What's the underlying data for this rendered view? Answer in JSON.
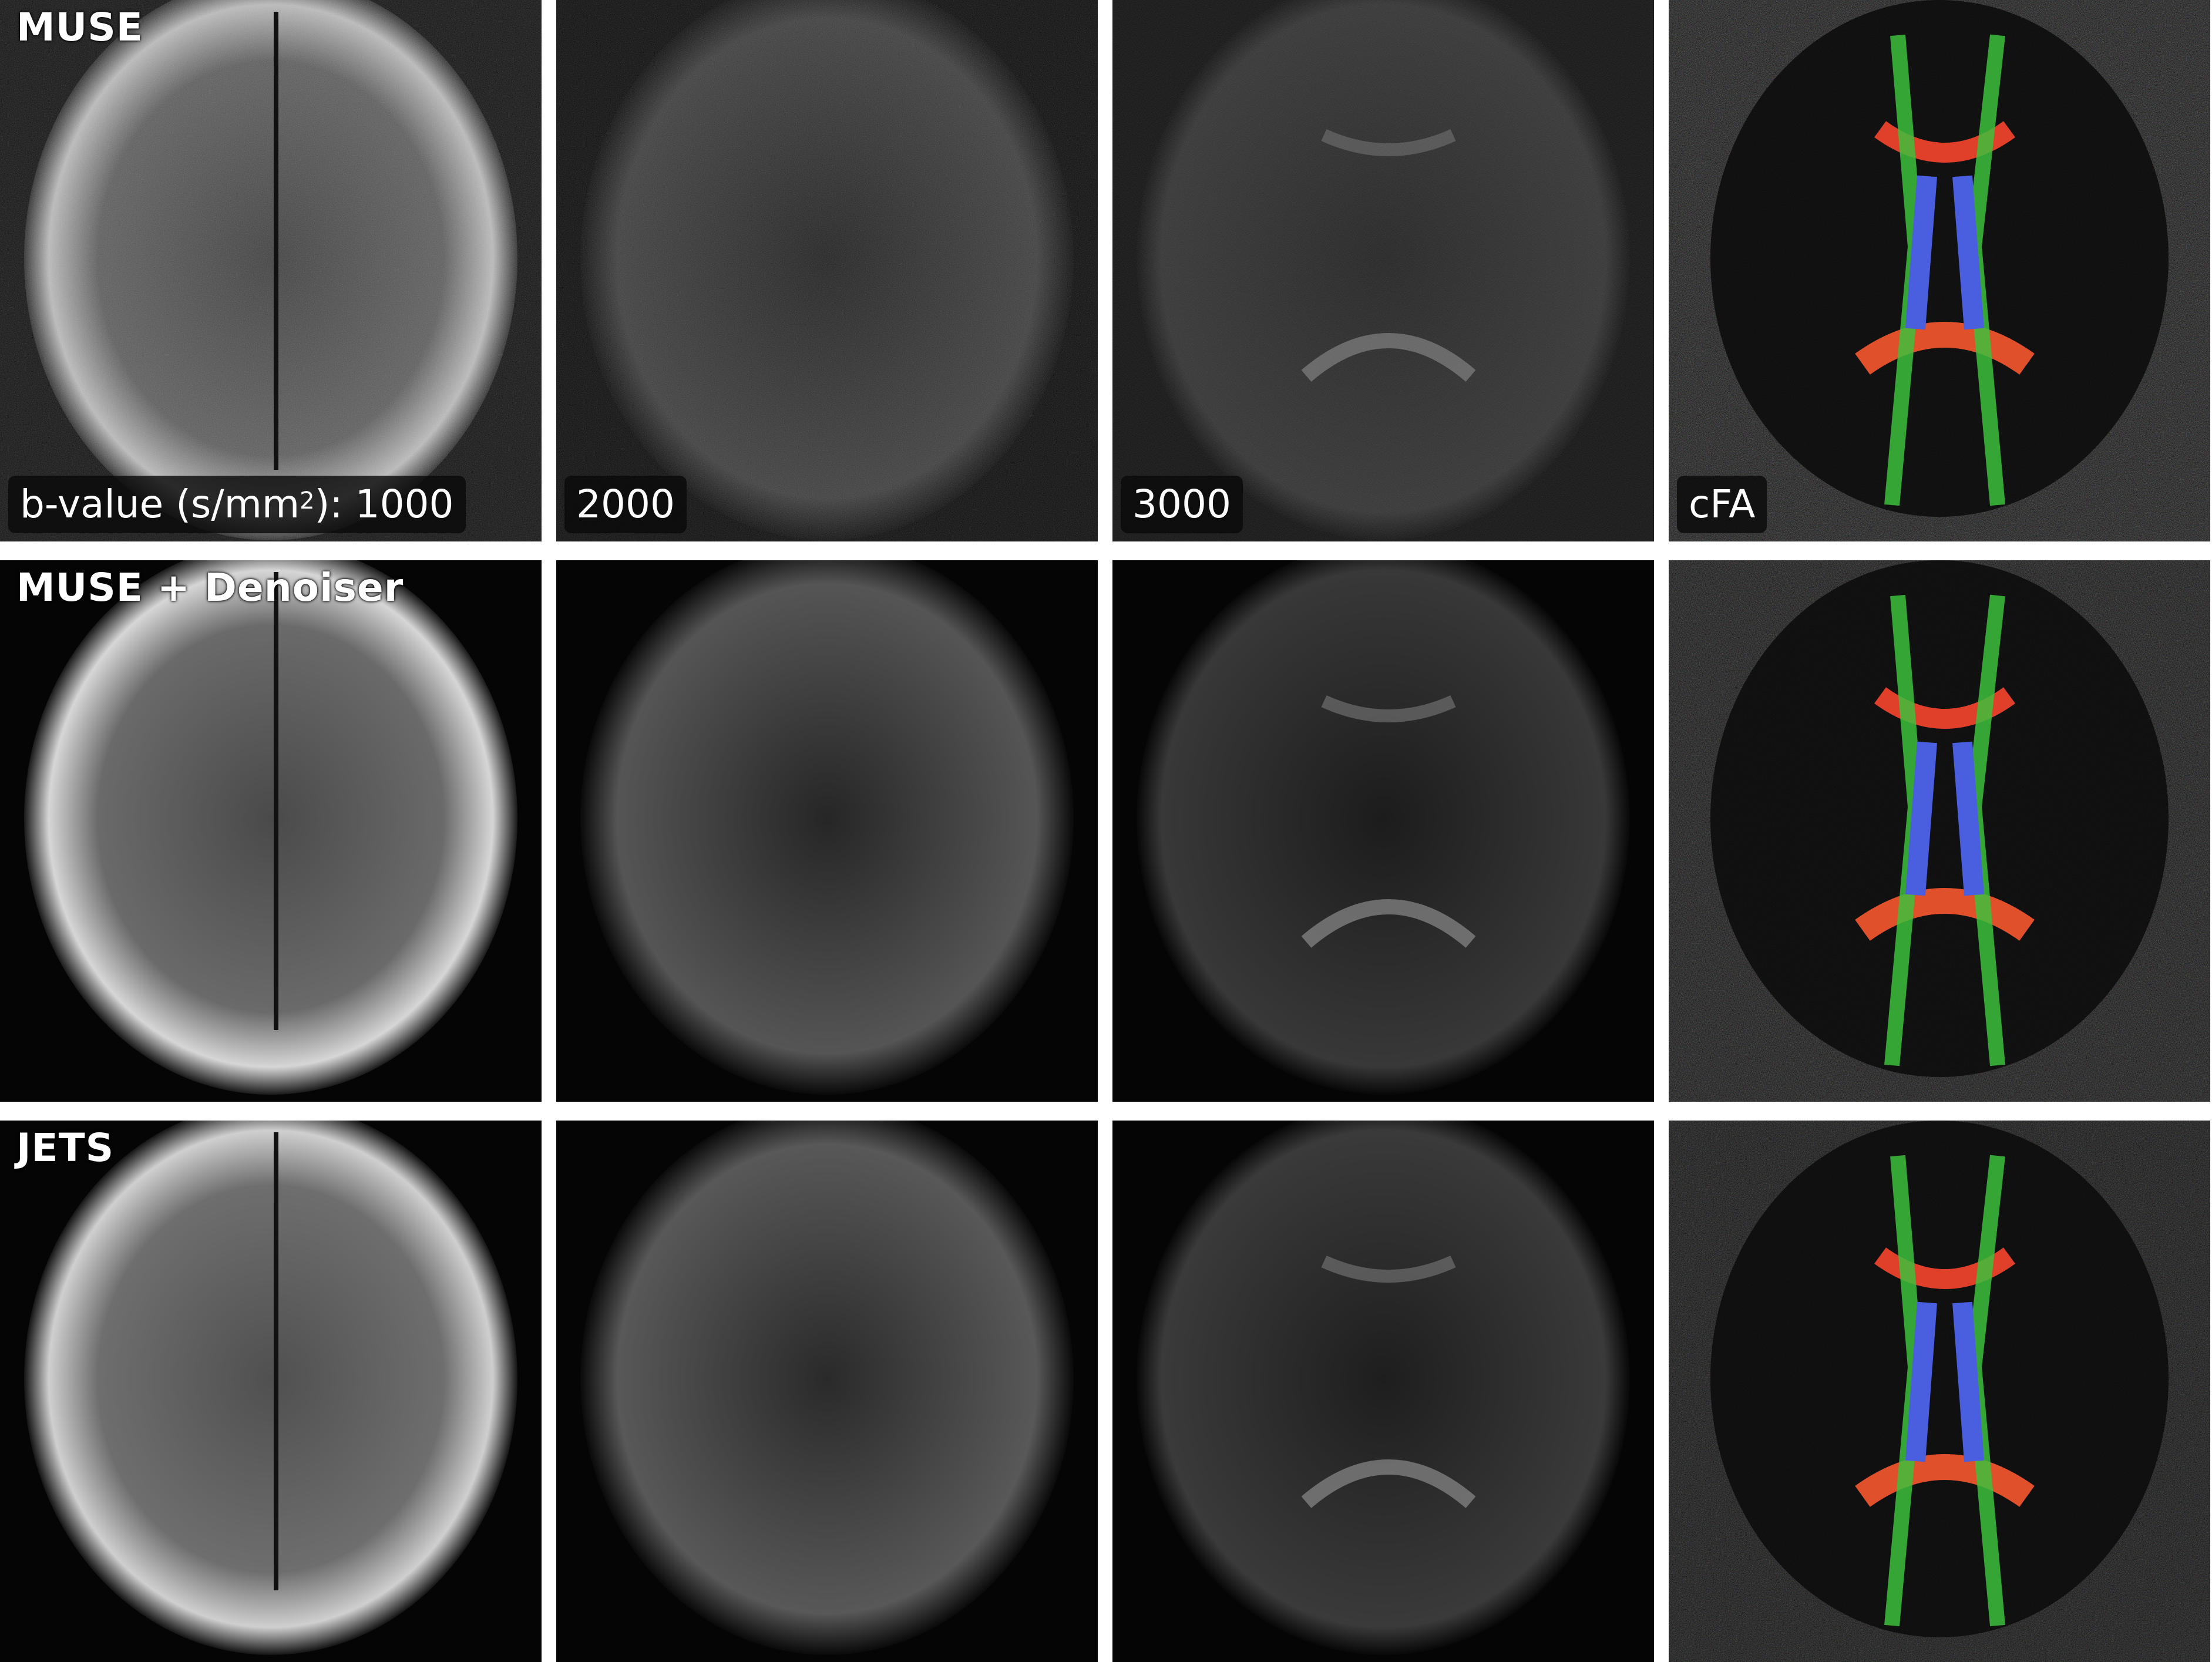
{
  "rows": [
    {
      "label": "MUSE"
    },
    {
      "label": "MUSE + Denoiser"
    },
    {
      "label": "JETS"
    }
  ],
  "columns": [
    {
      "b_prefix": "b-value (s/mm",
      "b_sup": "2",
      "b_suffix": "): 1000"
    },
    {
      "label": "2000"
    },
    {
      "label": "3000"
    },
    {
      "label": "cFA"
    }
  ]
}
